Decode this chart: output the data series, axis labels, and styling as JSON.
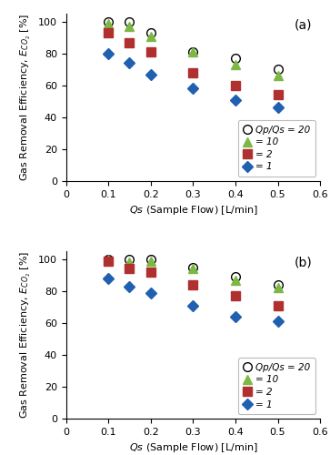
{
  "panel_a": {
    "label": "(a)",
    "series": {
      "Qp20": {
        "x": [
          0.1,
          0.15,
          0.2,
          0.3,
          0.4,
          0.5
        ],
        "y": [
          100,
          100,
          93,
          81,
          77,
          70
        ],
        "marker": "o",
        "facecolor": "none",
        "edgecolor": "#000000",
        "markersize": 7,
        "label": "Qp/Qs = 20"
      },
      "Qp10": {
        "x": [
          0.1,
          0.15,
          0.2,
          0.3,
          0.4,
          0.5
        ],
        "y": [
          99,
          97,
          91,
          81,
          73,
          66
        ],
        "marker": "^",
        "facecolor": "#7cb843",
        "edgecolor": "#7cb843",
        "markersize": 7,
        "label": "= 10"
      },
      "Qp2": {
        "x": [
          0.1,
          0.15,
          0.2,
          0.3,
          0.4,
          0.5
        ],
        "y": [
          93,
          87,
          81,
          68,
          60,
          54
        ],
        "marker": "s",
        "facecolor": "#b03030",
        "edgecolor": "#b03030",
        "markersize": 7,
        "label": "= 2"
      },
      "Qp1": {
        "x": [
          0.1,
          0.15,
          0.2,
          0.3,
          0.4,
          0.5
        ],
        "y": [
          80,
          74,
          67,
          58,
          51,
          46
        ],
        "marker": "D",
        "facecolor": "#2060b0",
        "edgecolor": "#2060b0",
        "markersize": 6,
        "label": "= 1"
      }
    }
  },
  "panel_b": {
    "label": "(b)",
    "series": {
      "Qp20": {
        "x": [
          0.1,
          0.15,
          0.2,
          0.3,
          0.4,
          0.5
        ],
        "y": [
          100,
          100,
          100,
          95,
          89,
          84
        ],
        "marker": "o",
        "facecolor": "none",
        "edgecolor": "#000000",
        "markersize": 7,
        "label": "Qp/Qs = 20"
      },
      "Qp10": {
        "x": [
          0.1,
          0.15,
          0.2,
          0.3,
          0.4,
          0.5
        ],
        "y": [
          100,
          98,
          99,
          94,
          87,
          82
        ],
        "marker": "^",
        "facecolor": "#7cb843",
        "edgecolor": "#7cb843",
        "markersize": 7,
        "label": "= 10"
      },
      "Qp2": {
        "x": [
          0.1,
          0.15,
          0.2,
          0.3,
          0.4,
          0.5
        ],
        "y": [
          99,
          94,
          92,
          84,
          77,
          71
        ],
        "marker": "s",
        "facecolor": "#b03030",
        "edgecolor": "#b03030",
        "markersize": 7,
        "label": "= 2"
      },
      "Qp1": {
        "x": [
          0.1,
          0.15,
          0.2,
          0.3,
          0.4,
          0.5
        ],
        "y": [
          88,
          83,
          79,
          71,
          64,
          61
        ],
        "marker": "D",
        "facecolor": "#2060b0",
        "edgecolor": "#2060b0",
        "markersize": 6,
        "label": "= 1"
      }
    }
  },
  "xlabel": "Qs (Sample Flow) [L/min]",
  "ylabel_co2": "Gas Removal Efficiency, $E_{CO_2}$ [%]",
  "xlim": [
    0,
    0.6
  ],
  "ylim": [
    0,
    105
  ],
  "yticks": [
    0,
    20,
    40,
    60,
    80,
    100
  ],
  "xticks": [
    0,
    0.1,
    0.2,
    0.3,
    0.4,
    0.5,
    0.6
  ],
  "background_color": "#ffffff"
}
